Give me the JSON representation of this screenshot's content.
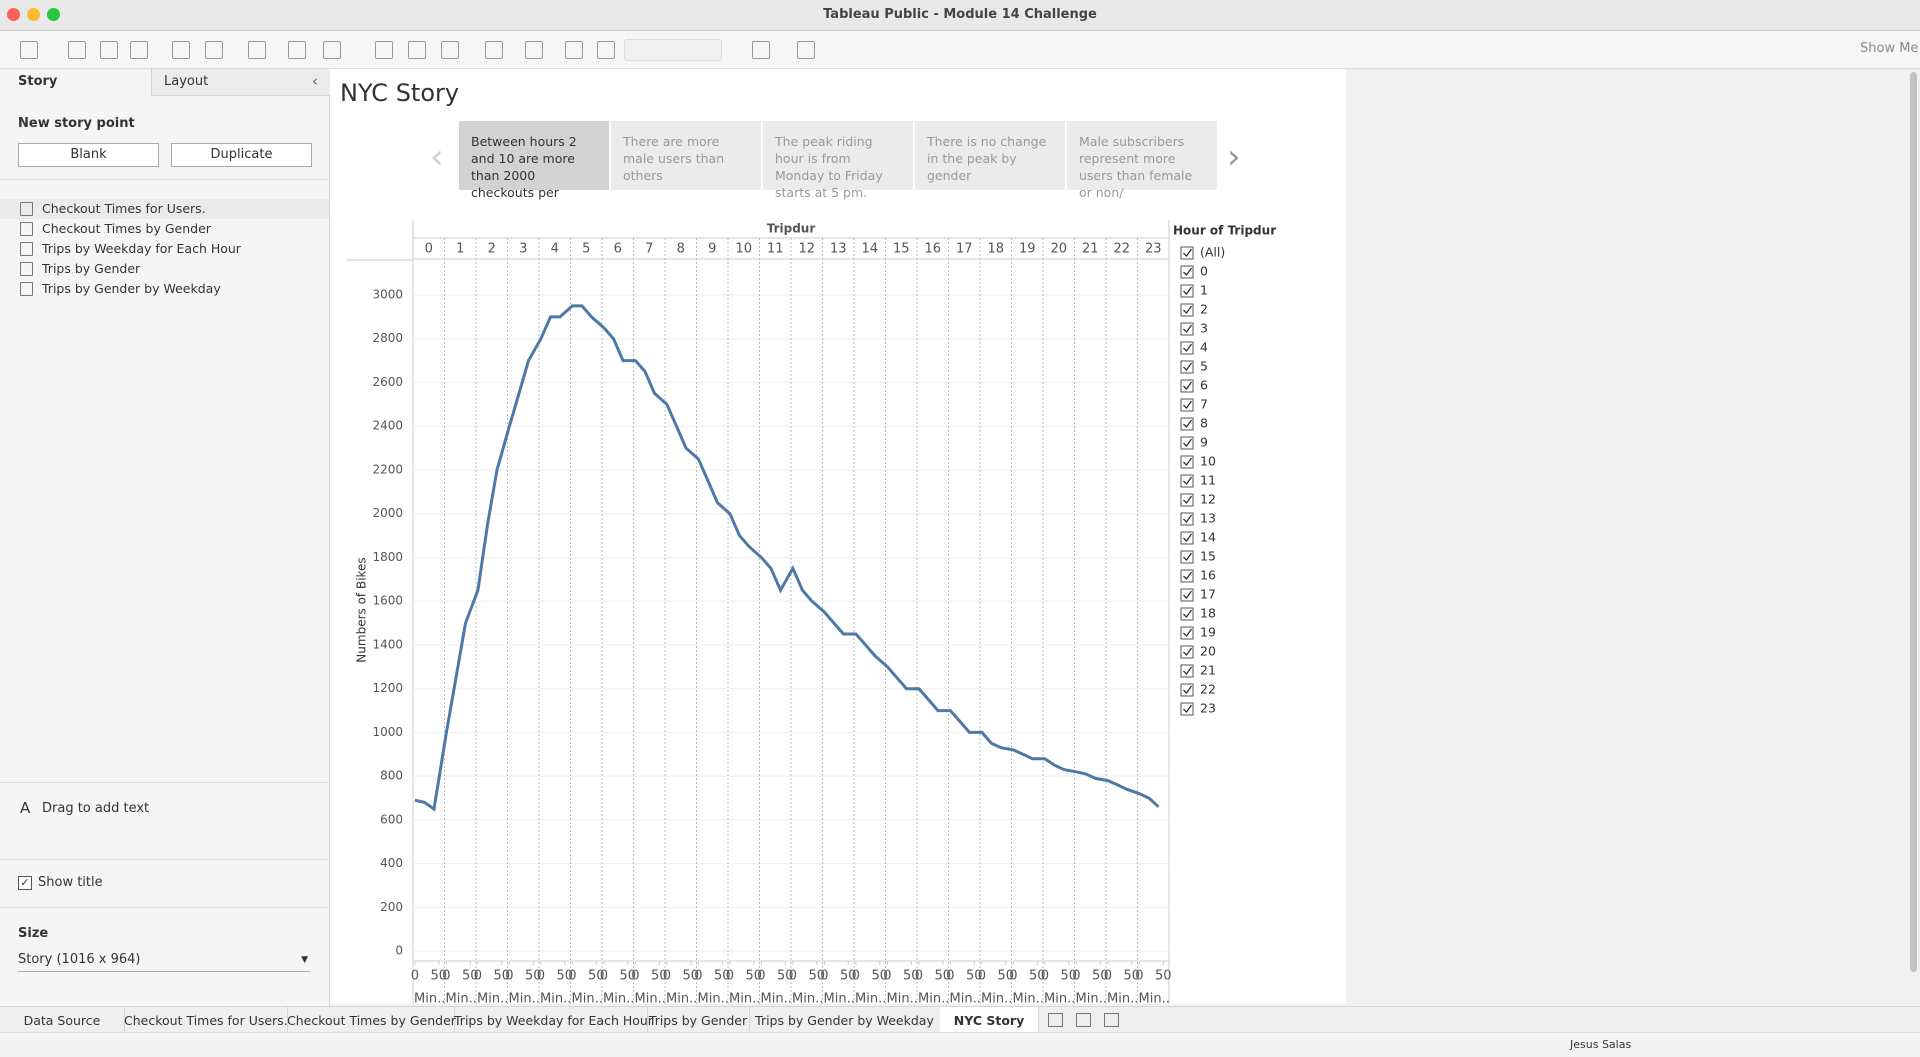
{
  "window": {
    "title": "Tableau Public - Module 14 Challenge",
    "show_me": "Show Me"
  },
  "sidebar": {
    "tabs": [
      "Story",
      "Layout"
    ],
    "new_story_point": "New story point",
    "buttons": [
      "Blank",
      "Duplicate"
    ],
    "sheets": [
      "Checkout Times for Users.",
      "Checkout Times by Gender",
      "Trips by Weekday for Each Hour",
      "Trips by Gender",
      "Trips by Gender by Weekday"
    ],
    "drag_text": "Drag to add text",
    "show_title": "Show title",
    "size_label": "Size",
    "size_value": "Story (1016 x 964)"
  },
  "story": {
    "title": "NYC Story",
    "points": [
      "Between hours 2 and 10 are more than 2000 checkouts per",
      "There are more male users than others",
      "The peak riding hour is from Monday to Friday starts at 5 pm.",
      "There is no change in the peak by gender",
      "Male subscribers represent more users than female or non/"
    ]
  },
  "chart_data": {
    "type": "line",
    "title": "Tripdur",
    "y_label": "Numbers of Bikes",
    "color": "#4e79a7",
    "categories": [
      "0",
      "1",
      "2",
      "3",
      "4",
      "5",
      "6",
      "7",
      "8",
      "9",
      "10",
      "11",
      "12",
      "13",
      "14",
      "15",
      "16",
      "17",
      "18",
      "19",
      "20",
      "21",
      "22",
      "23"
    ],
    "xticks": [
      0,
      50
    ],
    "x_unit_label": "Min..",
    "xlim": [
      -4,
      62
    ],
    "x": [
      0,
      20,
      40,
      60,
      80,
      100,
      120,
      140,
      160,
      180,
      200,
      220,
      240,
      260,
      280,
      300,
      320,
      340,
      360,
      380,
      400,
      420,
      440,
      460,
      480,
      500,
      520,
      540,
      560,
      580,
      600,
      620,
      640,
      660,
      680,
      700,
      720,
      740,
      760,
      780,
      800,
      820,
      840,
      860,
      880,
      900,
      920,
      940,
      960,
      980,
      1000,
      1020,
      1040,
      1060,
      1080,
      1100,
      1120,
      1140,
      1160,
      1180,
      1200,
      1220,
      1240,
      1260,
      1280,
      1300,
      1320,
      1340,
      1360,
      1380,
      1400,
      1420
    ],
    "values": [
      690,
      680,
      650,
      1000,
      1250,
      1500,
      1650,
      1950,
      2200,
      2400,
      2550,
      2700,
      2800,
      2900,
      2900,
      2950,
      2950,
      2900,
      2850,
      2800,
      2700,
      2700,
      2650,
      2550,
      2500,
      2400,
      2300,
      2250,
      2150,
      2050,
      2000,
      1900,
      1850,
      1800,
      1750,
      1650,
      1750,
      1650,
      1600,
      1550,
      1500,
      1450,
      1450,
      1400,
      1350,
      1300,
      1250,
      1200,
      1200,
      1150,
      1100,
      1100,
      1050,
      1000,
      1000,
      950,
      930,
      920,
      900,
      880,
      880,
      850,
      830,
      820,
      810,
      790,
      780,
      760,
      740,
      720,
      700,
      660
    ],
    "ylim": [
      -45,
      3160
    ],
    "yticks": [
      0,
      200,
      400,
      600,
      800,
      1000,
      1200,
      1400,
      1600,
      1800,
      2000,
      2200,
      2400,
      2600,
      2800,
      3000
    ],
    "grid": true
  },
  "filter": {
    "title": "Hour of Tripdur",
    "items": [
      "(All)",
      "0",
      "1",
      "2",
      "3",
      "4",
      "5",
      "6",
      "7",
      "8",
      "9",
      "10",
      "11",
      "12",
      "13",
      "14",
      "15",
      "16",
      "17",
      "18",
      "19",
      "20",
      "21",
      "22",
      "23"
    ]
  },
  "bottom_tabs": [
    "Data Source",
    "Checkout Times for Users.",
    "Checkout Times by Gender",
    "Trips by Weekday for Each Hour",
    "Trips by Gender",
    "Trips by Gender by Weekday",
    "NYC Story"
  ],
  "user": "Jesus Salas"
}
